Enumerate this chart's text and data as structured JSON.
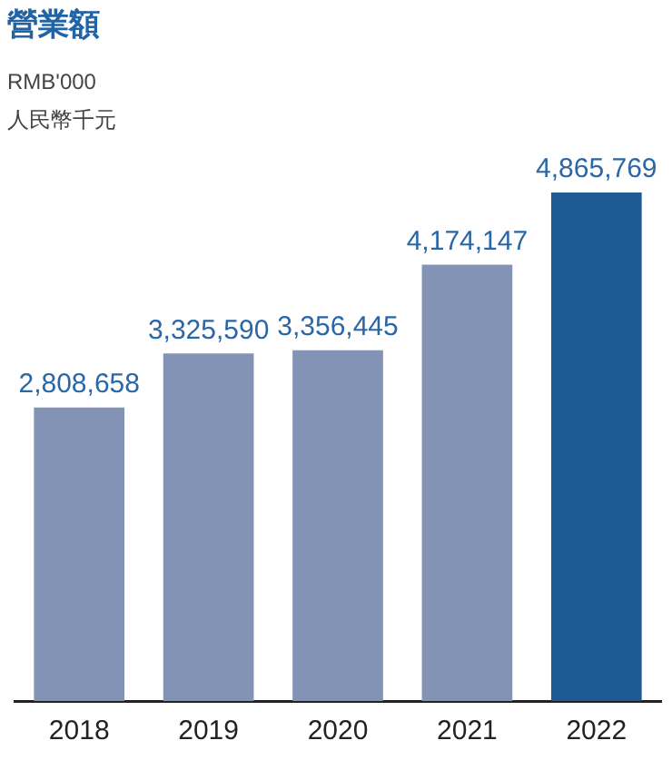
{
  "chart_data": {
    "type": "bar",
    "title": "營業額",
    "subtitle": "RMB'000",
    "annotations": [
      "人民幣千元"
    ],
    "categories": [
      "2018",
      "2019",
      "2020",
      "2021",
      "2022"
    ],
    "values": [
      2808658,
      3325590,
      3356445,
      4174147,
      4865769
    ],
    "colors": [
      "#8393b6",
      "#8393b6",
      "#8393b6",
      "#8393b6",
      "#1d5a94"
    ],
    "value_labels": [
      "2,808,658",
      "3,325,590",
      "3,356,445",
      "4,174,147",
      "4,865,769"
    ],
    "grid": false,
    "legend": false
  }
}
